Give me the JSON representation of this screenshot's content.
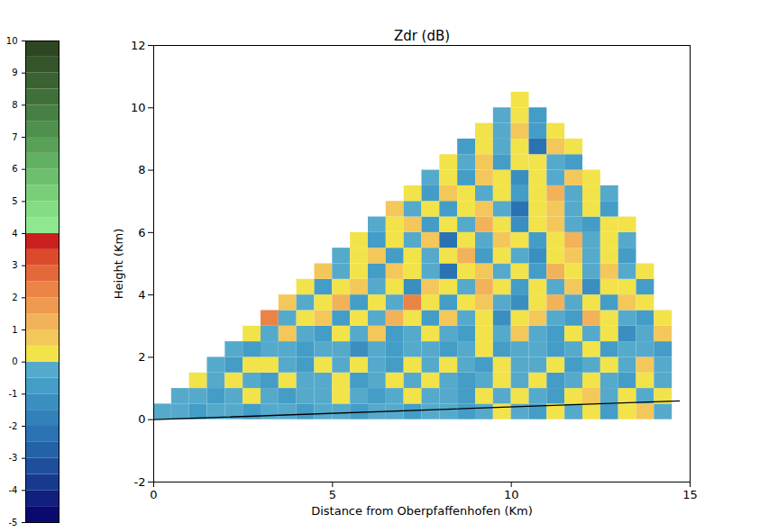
{
  "chart_data": {
    "type": "heatmap",
    "title": "Zdr (dB)",
    "x_label": "Distance from Oberpfaffenhofen (Km)",
    "y_label": "Height (Km)",
    "xlim": [
      0,
      15
    ],
    "ylim": [
      -2,
      12
    ],
    "xticks": [
      0,
      5,
      10,
      15
    ],
    "yticks": [
      -2,
      0,
      2,
      4,
      6,
      8,
      10,
      12
    ],
    "x": [
      0.25,
      0.75,
      1.25,
      1.75,
      2.25,
      2.75,
      3.25,
      3.75,
      4.25,
      4.75,
      5.25,
      5.75,
      6.25,
      6.75,
      7.25,
      7.75,
      8.25,
      8.75,
      9.25,
      9.75,
      10.25,
      10.75,
      11.25,
      11.75,
      12.25,
      12.75,
      13.25,
      13.75,
      14.25,
      14.75
    ],
    "y": [
      0.25,
      0.75,
      1.25,
      1.75,
      2.25,
      2.75,
      3.25,
      3.75,
      4.25,
      4.75,
      5.25,
      5.75,
      6.25,
      6.75,
      7.25,
      7.75,
      8.25,
      8.75,
      9.25,
      9.75,
      10.25
    ],
    "cell_size": 0.5,
    "cells": [
      [
        -0.3,
        -0.3,
        -0.8,
        -0.3,
        -0.3,
        -0.8,
        -0.3,
        -0.3,
        -0.8,
        -0.3,
        -0.3,
        -0.8,
        -0.3,
        -0.3,
        -0.8,
        -0.3,
        -0.3,
        -0.8,
        -0.3,
        0.3,
        -0.3,
        -0.8,
        0.3,
        -0.3,
        0.3,
        -0.8,
        0.3,
        0.8,
        -0.3,
        null
      ],
      [
        null,
        -0.3,
        -0.3,
        -0.8,
        -0.3,
        0.3,
        -0.3,
        -0.8,
        -0.3,
        -0.3,
        0.3,
        -0.3,
        -0.8,
        -0.3,
        0.3,
        -0.3,
        -0.3,
        -0.8,
        0.3,
        -0.3,
        0.3,
        -0.3,
        -0.8,
        0.3,
        0.8,
        -0.3,
        0.3,
        -0.3,
        0.3,
        null
      ],
      [
        null,
        null,
        0.3,
        -0.3,
        0.3,
        -0.3,
        -0.8,
        0.3,
        -0.3,
        -0.3,
        0.3,
        -0.8,
        -0.3,
        0.3,
        -0.3,
        0.3,
        -0.3,
        -0.8,
        -0.3,
        0.3,
        -0.3,
        0.3,
        -0.8,
        -0.3,
        0.3,
        -0.3,
        -0.8,
        0.3,
        -0.3,
        null
      ],
      [
        null,
        null,
        null,
        -0.3,
        -0.8,
        0.3,
        0.3,
        -0.3,
        -0.8,
        0.3,
        -0.3,
        0.3,
        -0.3,
        -0.8,
        0.3,
        -0.3,
        0.3,
        -0.3,
        -0.8,
        0.3,
        -0.3,
        -0.3,
        0.3,
        -0.8,
        -0.3,
        0.3,
        -0.3,
        0.8,
        -0.3,
        null
      ],
      [
        null,
        null,
        null,
        null,
        -0.3,
        -0.8,
        -0.3,
        -0.3,
        -0.8,
        -0.3,
        -0.3,
        -1.3,
        -0.3,
        -0.8,
        -0.3,
        -0.3,
        -0.8,
        -0.3,
        0.3,
        -0.8,
        -0.3,
        -0.3,
        -0.8,
        -0.3,
        0.3,
        -0.8,
        -0.3,
        -0.3,
        -0.8,
        null
      ],
      [
        null,
        null,
        null,
        null,
        null,
        0.3,
        -0.3,
        0.8,
        -0.3,
        -0.8,
        0.3,
        -0.3,
        0.8,
        -0.8,
        -0.3,
        0.3,
        -0.3,
        -0.8,
        0.3,
        -0.3,
        0.8,
        -0.3,
        -0.8,
        0.3,
        -0.3,
        0.3,
        -1.3,
        -0.3,
        0.8,
        null
      ],
      [
        null,
        null,
        null,
        null,
        null,
        null,
        2.2,
        -0.3,
        0.3,
        0.8,
        -0.8,
        0.3,
        -0.3,
        1.3,
        0.3,
        -0.8,
        0.8,
        -0.3,
        0.3,
        -1.3,
        0.3,
        0.8,
        -0.3,
        -0.8,
        1.3,
        0.3,
        -0.3,
        -0.8,
        0.3,
        null
      ],
      [
        null,
        null,
        null,
        null,
        null,
        null,
        null,
        0.8,
        -0.3,
        0.3,
        1.3,
        -0.8,
        0.3,
        -0.3,
        2.2,
        0.3,
        -0.8,
        0.3,
        0.8,
        -0.3,
        -1.3,
        0.3,
        1.3,
        -0.3,
        0.3,
        -0.8,
        0.8,
        0.3,
        null,
        null
      ],
      [
        null,
        null,
        null,
        null,
        null,
        null,
        null,
        null,
        0.3,
        -0.8,
        0.3,
        0.8,
        -0.3,
        0.3,
        -1.3,
        0.8,
        0.3,
        -0.3,
        1.3,
        0.3,
        -0.8,
        0.3,
        -0.3,
        0.8,
        -1.3,
        0.3,
        0.3,
        -0.8,
        null,
        null
      ],
      [
        null,
        null,
        null,
        null,
        null,
        null,
        null,
        null,
        null,
        0.8,
        -0.3,
        0.3,
        -0.8,
        0.8,
        0.3,
        -0.3,
        -2.2,
        0.3,
        0.8,
        -0.3,
        0.3,
        -0.8,
        1.3,
        0.3,
        -0.3,
        0.8,
        -0.3,
        0.3,
        null,
        null
      ],
      [
        null,
        null,
        null,
        null,
        null,
        null,
        null,
        null,
        null,
        null,
        -0.3,
        0.3,
        0.8,
        -0.8,
        0.3,
        -0.3,
        0.3,
        1.3,
        -0.8,
        0.3,
        -0.3,
        -1.3,
        0.3,
        0.8,
        -0.3,
        0.3,
        -0.8,
        null,
        null,
        null
      ],
      [
        null,
        null,
        null,
        null,
        null,
        null,
        null,
        null,
        null,
        null,
        null,
        0.3,
        -0.8,
        0.3,
        -0.3,
        0.8,
        -2.2,
        0.3,
        -0.3,
        0.8,
        0.3,
        -0.8,
        0.3,
        1.3,
        -0.3,
        0.3,
        -0.3,
        null,
        null,
        null
      ],
      [
        null,
        null,
        null,
        null,
        null,
        null,
        null,
        null,
        null,
        null,
        null,
        null,
        -0.3,
        0.3,
        0.8,
        -0.8,
        0.3,
        -0.3,
        1.3,
        0.3,
        -1.3,
        0.3,
        0.8,
        -0.3,
        -0.8,
        0.3,
        0.3,
        null,
        null,
        null
      ],
      [
        null,
        null,
        null,
        null,
        null,
        null,
        null,
        null,
        null,
        null,
        null,
        null,
        null,
        0.8,
        -0.3,
        0.3,
        -0.8,
        0.3,
        0.8,
        -0.3,
        -2.2,
        0.3,
        0.8,
        -0.3,
        0.3,
        -0.8,
        null,
        null,
        null,
        null
      ],
      [
        null,
        null,
        null,
        null,
        null,
        null,
        null,
        null,
        null,
        null,
        null,
        null,
        null,
        null,
        0.3,
        -0.8,
        0.8,
        0.3,
        -0.3,
        0.3,
        -0.8,
        0.3,
        1.3,
        -0.3,
        0.3,
        -0.3,
        null,
        null,
        null,
        null
      ],
      [
        null,
        null,
        null,
        null,
        null,
        null,
        null,
        null,
        null,
        null,
        null,
        null,
        null,
        null,
        null,
        -0.3,
        0.3,
        -0.8,
        0.8,
        0.3,
        -1.3,
        0.3,
        -0.3,
        0.8,
        0.3,
        null,
        null,
        null,
        null,
        null
      ],
      [
        null,
        null,
        null,
        null,
        null,
        null,
        null,
        null,
        null,
        null,
        null,
        null,
        null,
        null,
        null,
        null,
        0.3,
        -0.3,
        0.8,
        -0.8,
        0.3,
        0.3,
        -0.3,
        -0.8,
        null,
        null,
        null,
        null,
        null,
        null
      ],
      [
        null,
        null,
        null,
        null,
        null,
        null,
        null,
        null,
        null,
        null,
        null,
        null,
        null,
        null,
        null,
        null,
        null,
        -0.8,
        0.3,
        -0.3,
        0.3,
        -2.2,
        0.8,
        0.3,
        null,
        null,
        null,
        null,
        null,
        null
      ],
      [
        null,
        null,
        null,
        null,
        null,
        null,
        null,
        null,
        null,
        null,
        null,
        null,
        null,
        null,
        null,
        null,
        null,
        null,
        0.3,
        -0.3,
        0.8,
        -0.8,
        0.3,
        null,
        null,
        null,
        null,
        null,
        null,
        null
      ],
      [
        null,
        null,
        null,
        null,
        null,
        null,
        null,
        null,
        null,
        null,
        null,
        null,
        null,
        null,
        null,
        null,
        null,
        null,
        null,
        -0.3,
        0.3,
        -0.8,
        null,
        null,
        null,
        null,
        null,
        null,
        null,
        null
      ],
      [
        null,
        null,
        null,
        null,
        null,
        null,
        null,
        null,
        null,
        null,
        null,
        null,
        null,
        null,
        null,
        null,
        null,
        null,
        null,
        null,
        0.3,
        null,
        null,
        null,
        null,
        null,
        null,
        null,
        null,
        null
      ]
    ],
    "colorbar": {
      "range": [
        -5,
        10
      ],
      "ticks": [
        -5,
        -4,
        -3,
        -2,
        -1,
        0,
        1,
        2,
        3,
        4,
        5,
        6,
        7,
        8,
        9,
        10
      ],
      "colors": [
        "#0a0a6e",
        "#10207e",
        "#183a8e",
        "#1f4f9c",
        "#2462a8",
        "#2a72b2",
        "#3281ba",
        "#3a8fc0",
        "#449dc6",
        "#55aacc",
        "#f2e34a",
        "#f3c75a",
        "#f1b25a",
        "#ee9a50",
        "#ea8445",
        "#e4693a",
        "#dc4a2c",
        "#cc2020",
        "#8fe88f",
        "#84dc84",
        "#78cf78",
        "#6cbf6c",
        "#62b062",
        "#58a058",
        "#4f904e",
        "#477f44",
        "#40703a",
        "#3a6232",
        "#34542a",
        "#2e4622"
      ]
    },
    "line": {
      "x": [
        0,
        14.7
      ],
      "y": [
        0,
        0.6
      ],
      "color": "#000000"
    }
  }
}
